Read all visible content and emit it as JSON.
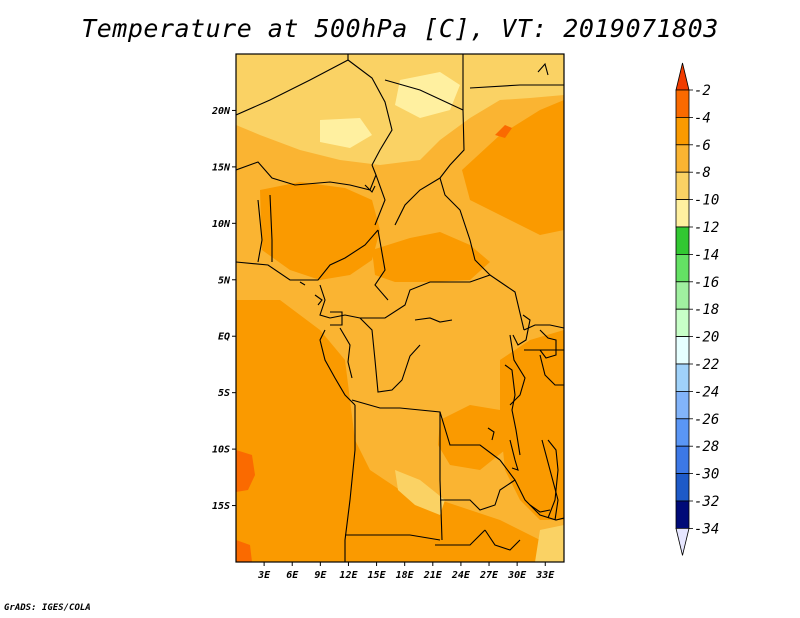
{
  "title": "Temperature at 500hPa [C], VT: 2019071803",
  "credit": "GrADS: IGES/COLA",
  "map": {
    "lon_range": [
      0,
      35
    ],
    "lat_range": [
      -20,
      25
    ],
    "lat_ticks": [
      {
        "value": 20,
        "label": "20N"
      },
      {
        "value": 15,
        "label": "15N"
      },
      {
        "value": 10,
        "label": "10N"
      },
      {
        "value": 5,
        "label": "5N"
      },
      {
        "value": 0,
        "label": "EQ"
      },
      {
        "value": -5,
        "label": "5S"
      },
      {
        "value": -10,
        "label": "10S"
      },
      {
        "value": -15,
        "label": "15S"
      }
    ],
    "lon_ticks": [
      {
        "value": 3,
        "label": "3E"
      },
      {
        "value": 6,
        "label": "6E"
      },
      {
        "value": 9,
        "label": "9E"
      },
      {
        "value": 12,
        "label": "12E"
      },
      {
        "value": 15,
        "label": "15E"
      },
      {
        "value": 18,
        "label": "18E"
      },
      {
        "value": 21,
        "label": "21E"
      },
      {
        "value": 24,
        "label": "24E"
      },
      {
        "value": 27,
        "label": "27E"
      },
      {
        "value": 30,
        "label": "30E"
      },
      {
        "value": 33,
        "label": "33E"
      }
    ]
  },
  "colorbar": {
    "top_label": "-2",
    "levels": [
      {
        "label": "-4",
        "color": "#fa6a00"
      },
      {
        "label": "-6",
        "color": "#fa9a00"
      },
      {
        "label": "-8",
        "color": "#fab432"
      },
      {
        "label": "-10",
        "color": "#fad264"
      },
      {
        "label": "-12",
        "color": "#fff0a0"
      },
      {
        "label": "-14",
        "color": "#32c832"
      },
      {
        "label": "-16",
        "color": "#64e164"
      },
      {
        "label": "-18",
        "color": "#a0f0a0"
      },
      {
        "label": "-20",
        "color": "#c8ffc8"
      },
      {
        "label": "-22",
        "color": "#e6ffff"
      },
      {
        "label": "-24",
        "color": "#a0d2fa"
      },
      {
        "label": "-26",
        "color": "#82b4fa"
      },
      {
        "label": "-28",
        "color": "#5a96f5"
      },
      {
        "label": "-30",
        "color": "#3c78e6"
      },
      {
        "label": "-32",
        "color": "#1e5ac8"
      },
      {
        "label": "-34",
        "color": "#0a46b4"
      }
    ],
    "top_color": "#f03c00",
    "bottom_color": "#000a78",
    "under_color": "#e6e6ff"
  },
  "fields": {
    "base_color": "#fab432",
    "warm_color": "#fa9a00",
    "warmest_color": "#fa6a00",
    "cool_color": "#fad264",
    "coolest_color": "#fff0a0"
  }
}
